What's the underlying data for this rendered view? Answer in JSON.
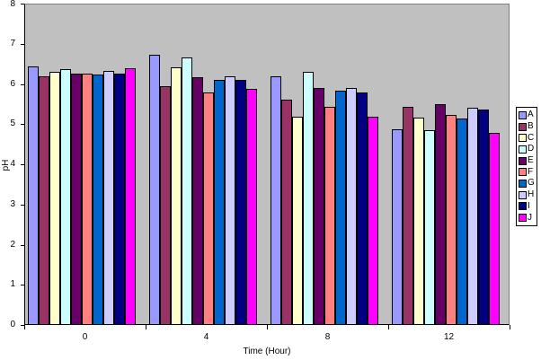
{
  "chart_data": {
    "type": "bar",
    "title": "",
    "xlabel": "Time (Hour)",
    "ylabel": "pH",
    "categories": [
      "0",
      "4",
      "8",
      "12"
    ],
    "y_ticks": [
      0,
      1,
      2,
      3,
      4,
      5,
      6,
      7,
      8
    ],
    "ylim": [
      0,
      8
    ],
    "grid": false,
    "legend_position": "right",
    "plot_bg_color": "#C0C0C0",
    "plot_border_color": "#808080",
    "axis_color": "#000000",
    "series": [
      {
        "name": "A",
        "color": "#9999FF",
        "values": [
          6.43,
          6.72,
          6.2,
          4.87
        ]
      },
      {
        "name": "B",
        "color": "#993366",
        "values": [
          6.2,
          5.94,
          5.6,
          5.44
        ]
      },
      {
        "name": "C",
        "color": "#FFFFCC",
        "values": [
          6.3,
          6.42,
          5.18,
          5.16
        ]
      },
      {
        "name": "D",
        "color": "#CCFFFF",
        "values": [
          6.36,
          6.66,
          6.3,
          4.85
        ]
      },
      {
        "name": "E",
        "color": "#660066",
        "values": [
          6.26,
          6.17,
          5.89,
          5.5
        ]
      },
      {
        "name": "F",
        "color": "#FF8080",
        "values": [
          6.26,
          5.78,
          5.42,
          5.24
        ]
      },
      {
        "name": "G",
        "color": "#0066CC",
        "values": [
          6.23,
          6.09,
          5.84,
          5.13
        ]
      },
      {
        "name": "H",
        "color": "#CCCCFF",
        "values": [
          6.32,
          6.18,
          5.89,
          5.41
        ]
      },
      {
        "name": "I",
        "color": "#000080",
        "values": [
          6.26,
          6.1,
          5.78,
          5.37
        ]
      },
      {
        "name": "J",
        "color": "#FF00FF",
        "values": [
          6.38,
          5.87,
          5.18,
          4.79
        ]
      }
    ]
  }
}
